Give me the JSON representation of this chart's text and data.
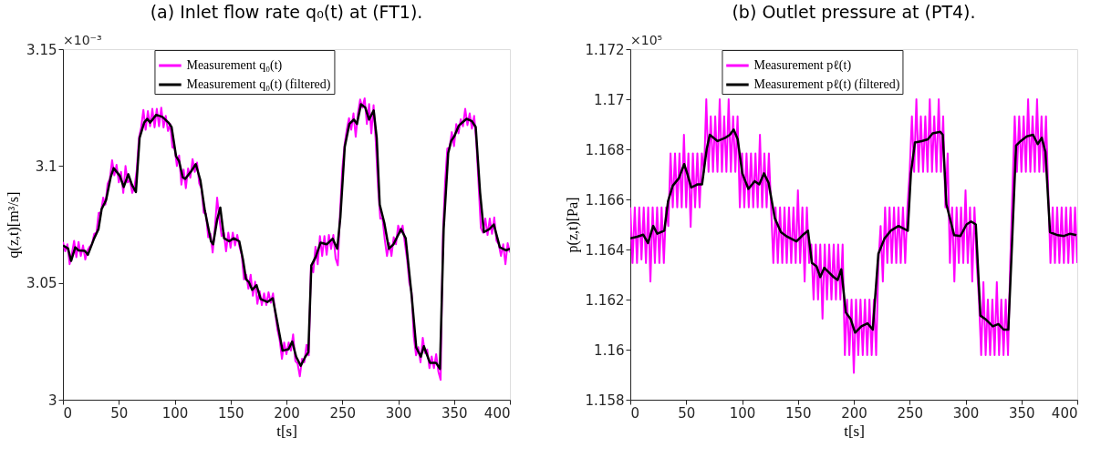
{
  "chart_data": [
    {
      "type": "line",
      "title": "(a) Inlet flow rate q₀(t) at (FT1).",
      "xlabel": "t[s]",
      "ylabel": "q(z,t)[m³/s]",
      "annotations": [
        "×10⁻³"
      ],
      "legend": "top",
      "xlim": [
        0,
        400
      ],
      "ylim": [
        3,
        3.15
      ],
      "xticks": [
        0,
        50,
        100,
        150,
        200,
        250,
        300,
        350,
        400
      ],
      "yticks": [
        3,
        3.05,
        3.1,
        3.15
      ],
      "series": [
        {
          "name": "Measurement q₀(t)",
          "color": "#ff00ff",
          "x": [
            0,
            2,
            4,
            6,
            8,
            10,
            12,
            14,
            16,
            18,
            20,
            22,
            24,
            26,
            28,
            30,
            32,
            34,
            36,
            38,
            40,
            42,
            44,
            46,
            48,
            50,
            52,
            54,
            56,
            58,
            60,
            62,
            64,
            66,
            68,
            70,
            72,
            74,
            76,
            78,
            80,
            82,
            84,
            86,
            88,
            90,
            92,
            94,
            96,
            98,
            100,
            102,
            104,
            106,
            108,
            110,
            112,
            114,
            116,
            118,
            120,
            122,
            124,
            126,
            128,
            130,
            132,
            134,
            136,
            138,
            140,
            142,
            144,
            146,
            148,
            150,
            152,
            154,
            156,
            158,
            160,
            162,
            164,
            166,
            168,
            170,
            172,
            174,
            176,
            178,
            180,
            182,
            184,
            186,
            188,
            190,
            192,
            194,
            196,
            198,
            200,
            202,
            204,
            206,
            208,
            210,
            212,
            214,
            216,
            218,
            220,
            222,
            224,
            226,
            228,
            230,
            232,
            234,
            236,
            238,
            240,
            242,
            244,
            246,
            248,
            250,
            252,
            254,
            256,
            258,
            260,
            262,
            264,
            266,
            268,
            270,
            272,
            274,
            276,
            278,
            280,
            282,
            284,
            286,
            288,
            290,
            292,
            294,
            296,
            298,
            300,
            302,
            304,
            306,
            308,
            310,
            312,
            314,
            316,
            318,
            320,
            322,
            324,
            326,
            328,
            330,
            332,
            334,
            336,
            338,
            340,
            342,
            344,
            346,
            348,
            350,
            352,
            354,
            356,
            358,
            360,
            362,
            364,
            366,
            368,
            370,
            372,
            374,
            376,
            378,
            380,
            382,
            384,
            386,
            388,
            390,
            392,
            394,
            396,
            398,
            400
          ],
          "values": [
            3.0675,
            3.0635,
            3.0665,
            3.058,
            3.0625,
            3.068,
            3.061,
            3.0675,
            3.0615,
            3.066,
            3.06,
            3.064,
            3.0655,
            3.0665,
            3.071,
            3.0715,
            3.08,
            3.08,
            3.0865,
            3.0835,
            3.0925,
            3.0945,
            3.1025,
            3.096,
            3.1005,
            3.093,
            3.0975,
            3.0885,
            3.1,
            3.093,
            3.094,
            3.0885,
            3.091,
            3.098,
            3.112,
            3.1165,
            3.124,
            3.1155,
            3.1235,
            3.117,
            3.1245,
            3.1165,
            3.1245,
            3.117,
            3.125,
            3.1165,
            3.1215,
            3.115,
            3.118,
            3.108,
            3.1075,
            3.1,
            3.1045,
            3.092,
            3.0985,
            3.0905,
            3.099,
            3.095,
            3.103,
            3.0975,
            3.1015,
            3.0925,
            3.0905,
            3.08,
            3.0795,
            3.0695,
            3.071,
            3.063,
            3.0735,
            3.0865,
            3.0775,
            3.07,
            3.0715,
            3.0635,
            3.0715,
            3.065,
            3.0715,
            3.066,
            3.0705,
            3.0655,
            3.062,
            3.0515,
            3.0535,
            3.0475,
            3.0535,
            3.0445,
            3.0505,
            3.041,
            3.0465,
            3.0405,
            3.0455,
            3.0405,
            3.046,
            3.0415,
            3.0455,
            3.037,
            3.03,
            3.0255,
            3.0175,
            3.0245,
            3.0195,
            3.0245,
            3.021,
            3.028,
            3.0165,
            3.0155,
            3.01,
            3.0175,
            3.016,
            3.0235,
            3.019,
            3.0575,
            3.0545,
            3.0655,
            3.058,
            3.07,
            3.0615,
            3.07,
            3.062,
            3.0705,
            3.0645,
            3.0705,
            3.0605,
            3.0575,
            3.08,
            3.0985,
            3.109,
            3.1155,
            3.1205,
            3.1155,
            3.1225,
            3.1125,
            3.1225,
            3.1285,
            3.125,
            3.129,
            3.118,
            3.1265,
            3.114,
            3.126,
            3.11,
            3.091,
            3.0775,
            3.0775,
            3.0685,
            3.0615,
            3.067,
            3.0615,
            3.0695,
            3.0665,
            3.0745,
            3.0715,
            3.0745,
            3.067,
            3.06,
            3.05,
            3.046,
            3.027,
            3.019,
            3.0225,
            3.016,
            3.0265,
            3.02,
            3.0215,
            3.0135,
            3.0185,
            3.0135,
            3.0195,
            3.012,
            3.0085,
            3.07,
            3.093,
            3.1075,
            3.108,
            3.1145,
            3.1085,
            3.118,
            3.114,
            3.12,
            3.117,
            3.1245,
            3.1175,
            3.1225,
            3.116,
            3.1215,
            3.11,
            3.092,
            3.0735,
            3.0715,
            3.0775,
            3.0705,
            3.0775,
            3.071,
            3.078,
            3.068,
            3.0665,
            3.0615,
            3.0665,
            3.058,
            3.067,
            3.063
          ]
        },
        {
          "name": "Measurement q₀(t) (filtered)",
          "color": "#000000",
          "x": [
            0,
            4.6,
            7.3,
            11,
            14,
            19.6,
            22.3,
            28,
            31.8,
            34.6,
            38.6,
            42.7,
            45.4,
            50.9,
            54.4,
            58.5,
            61.8,
            65.3,
            68.6,
            72.7,
            75.4,
            78.1,
            83.5,
            89,
            94.4,
            97.2,
            101.2,
            104,
            107.2,
            109.4,
            114.8,
            118.9,
            123,
            127,
            132.5,
            134.4,
            138,
            140.8,
            144.2,
            148.8,
            152.9,
            157.8,
            161.1,
            163.8,
            166.5,
            169.3,
            173.3,
            176.9,
            182.9,
            187.8,
            191,
            196.5,
            201.9,
            205.2,
            208.7,
            212.8,
            216.9,
            219.6,
            222.3,
            226.4,
            230.5,
            236,
            241.4,
            245.5,
            248.3,
            252.2,
            256.3,
            260.4,
            263.1,
            266.7,
            270.5,
            274,
            278.1,
            280.8,
            283.5,
            287.6,
            291.7,
            295.8,
            302.6,
            306.7,
            312.1,
            316.2,
            320.3,
            323,
            328.4,
            333.9,
            337.4,
            340.7,
            344.8,
            347.5,
            350.3,
            354.3,
            361.2,
            365.8,
            369.4,
            373.3,
            376.7,
            381.6,
            385.6,
            391,
            396.5,
            400
          ],
          "values": [
            3.066,
            3.0647,
            3.0594,
            3.0652,
            3.0639,
            3.0637,
            3.062,
            3.0691,
            3.073,
            3.0815,
            3.0854,
            3.0952,
            3.0991,
            3.0958,
            3.091,
            3.0965,
            3.0919,
            3.0889,
            3.1121,
            3.1186,
            3.1202,
            3.1186,
            3.1219,
            3.121,
            3.1186,
            3.1167,
            3.1043,
            3.102,
            3.0952,
            3.0945,
            3.0978,
            3.1008,
            3.0939,
            3.0809,
            3.0678,
            3.0665,
            3.077,
            3.0822,
            3.0691,
            3.0678,
            3.0691,
            3.0678,
            3.06,
            3.0516,
            3.0503,
            3.047,
            3.049,
            3.0431,
            3.0418,
            3.0434,
            3.0353,
            3.021,
            3.0216,
            3.0249,
            3.0184,
            3.0145,
            3.0184,
            3.0203,
            3.0574,
            3.0613,
            3.0672,
            3.0665,
            3.0689,
            3.0646,
            3.0783,
            3.1082,
            3.118,
            3.1199,
            3.118,
            3.1264,
            3.1251,
            3.1199,
            3.1238,
            3.1121,
            3.0835,
            3.0757,
            3.0646,
            3.0665,
            3.073,
            3.0691,
            3.0444,
            3.0223,
            3.0184,
            3.0229,
            3.0158,
            3.0158,
            3.0132,
            3.073,
            3.1056,
            3.1108,
            3.1128,
            3.1173,
            3.1202,
            3.1193,
            3.1167,
            3.0887,
            3.0717,
            3.073,
            3.075,
            3.0652,
            3.0639,
            3.0646
          ]
        }
      ]
    },
    {
      "type": "line",
      "title": "(b) Outlet pressure at (PT4).",
      "xlabel": "t[s]",
      "ylabel": "p(z,t)[Pa]",
      "annotations": [
        "×10⁵"
      ],
      "legend": "top",
      "xlim": [
        0,
        400
      ],
      "ylim": [
        1.158,
        1.172
      ],
      "xticks": [
        0,
        50,
        100,
        150,
        200,
        250,
        300,
        350,
        400
      ],
      "yticks": [
        1.158,
        1.16,
        1.162,
        1.164,
        1.166,
        1.168,
        1.17,
        1.172
      ],
      "series": [
        {
          "name": "Measurement pℓ(t)",
          "color": "#ff00ff",
          "x": [
            0,
            2,
            4,
            6,
            8,
            10,
            12,
            14,
            16,
            18,
            20,
            22,
            24,
            26,
            28,
            30,
            32,
            34,
            36,
            38,
            40,
            42,
            44,
            46,
            48,
            50,
            52,
            54,
            56,
            58,
            60,
            62,
            64,
            66,
            68,
            70,
            72,
            74,
            76,
            78,
            80,
            82,
            84,
            86,
            88,
            90,
            92,
            94,
            96,
            98,
            100,
            102,
            104,
            106,
            108,
            110,
            112,
            114,
            116,
            118,
            120,
            122,
            124,
            126,
            128,
            130,
            132,
            134,
            136,
            138,
            140,
            142,
            144,
            146,
            148,
            150,
            152,
            154,
            156,
            158,
            160,
            162,
            164,
            166,
            168,
            170,
            172,
            174,
            176,
            178,
            180,
            182,
            184,
            186,
            188,
            190,
            192,
            194,
            196,
            198,
            200,
            202,
            204,
            206,
            208,
            210,
            212,
            214,
            216,
            218,
            220,
            222,
            224,
            226,
            228,
            230,
            232,
            234,
            236,
            238,
            240,
            242,
            244,
            246,
            248,
            250,
            252,
            254,
            256,
            258,
            260,
            262,
            264,
            266,
            268,
            270,
            272,
            274,
            276,
            278,
            280,
            282,
            284,
            286,
            288,
            290,
            292,
            294,
            296,
            298,
            300,
            302,
            304,
            306,
            308,
            310,
            312,
            314,
            316,
            318,
            320,
            322,
            324,
            326,
            328,
            330,
            332,
            334,
            336,
            338,
            340,
            342,
            344,
            346,
            348,
            350,
            352,
            354,
            356,
            358,
            360,
            362,
            364,
            366,
            368,
            370,
            372,
            374,
            376,
            378,
            380,
            382,
            384,
            386,
            388,
            390,
            392,
            394,
            396,
            398,
            400
          ],
          "values": [
            1.16568,
            1.16346,
            1.16568,
            1.16346,
            1.16568,
            1.1636,
            1.16568,
            1.16346,
            1.16568,
            1.16272,
            1.16568,
            1.16346,
            1.16568,
            1.16346,
            1.16568,
            1.16346,
            1.16568,
            1.16494,
            1.16784,
            1.16568,
            1.16784,
            1.16568,
            1.16784,
            1.16568,
            1.16858,
            1.16568,
            1.16784,
            1.1649,
            1.16784,
            1.16568,
            1.16784,
            1.16568,
            1.16784,
            1.1671,
            1.17,
            1.1671,
            1.16932,
            1.1671,
            1.16932,
            1.1671,
            1.17,
            1.1671,
            1.16932,
            1.1671,
            1.17,
            1.1671,
            1.16932,
            1.1671,
            1.16932,
            1.16568,
            1.16784,
            1.16568,
            1.16784,
            1.16568,
            1.16784,
            1.16568,
            1.16784,
            1.16568,
            1.16858,
            1.16568,
            1.16784,
            1.16568,
            1.16784,
            1.16568,
            1.16346,
            1.16568,
            1.16346,
            1.16568,
            1.16346,
            1.16568,
            1.16346,
            1.16568,
            1.16346,
            1.16568,
            1.16346,
            1.16636,
            1.16346,
            1.16568,
            1.16272,
            1.16568,
            1.16346,
            1.1642,
            1.162,
            1.1642,
            1.162,
            1.1642,
            1.16124,
            1.1642,
            1.162,
            1.1642,
            1.162,
            1.1642,
            1.162,
            1.1642,
            1.162,
            1.1642,
            1.15978,
            1.162,
            1.15978,
            1.162,
            1.15907,
            1.162,
            1.15978,
            1.162,
            1.15978,
            1.162,
            1.15978,
            1.162,
            1.15978,
            1.162,
            1.15978,
            1.16346,
            1.16494,
            1.16272,
            1.16568,
            1.16346,
            1.16568,
            1.16346,
            1.16568,
            1.16346,
            1.16568,
            1.16346,
            1.16568,
            1.16346,
            1.16568,
            1.1671,
            1.16932,
            1.1671,
            1.17,
            1.1671,
            1.16932,
            1.1671,
            1.16932,
            1.1671,
            1.17,
            1.1671,
            1.16932,
            1.1671,
            1.17,
            1.1671,
            1.16932,
            1.16568,
            1.16784,
            1.16346,
            1.16568,
            1.16272,
            1.16568,
            1.16346,
            1.16568,
            1.16346,
            1.16636,
            1.16346,
            1.16568,
            1.16272,
            1.16568,
            1.16346,
            1.162,
            1.15978,
            1.1627,
            1.15978,
            1.162,
            1.15978,
            1.162,
            1.15978,
            1.1627,
            1.15978,
            1.162,
            1.15978,
            1.162,
            1.15978,
            1.16346,
            1.16636,
            1.16932,
            1.1671,
            1.16932,
            1.1671,
            1.16932,
            1.1671,
            1.17,
            1.1671,
            1.16932,
            1.1671,
            1.17,
            1.1671,
            1.16932,
            1.1671,
            1.16932,
            1.16636,
            1.16346,
            1.16568,
            1.16346,
            1.16568,
            1.16346,
            1.16568,
            1.16346,
            1.16568,
            1.16346,
            1.16568,
            1.16346,
            1.16568,
            1.16346
          ]
        },
        {
          "name": "Measurement pℓ(t) (filtered)",
          "color": "#000000",
          "x": [
            0,
            6.1,
            11.6,
            15.8,
            20.5,
            24.1,
            30.4,
            33.8,
            37.9,
            43.5,
            48.2,
            50.9,
            54.5,
            60.1,
            64.2,
            68.4,
            71.1,
            78.1,
            84.9,
            89.1,
            92.5,
            96.1,
            100.2,
            105.7,
            111.3,
            115.4,
            119.6,
            123.7,
            129.3,
            134.8,
            140.4,
            148.7,
            154.2,
            159,
            162.5,
            166.6,
            170,
            173.6,
            177.7,
            181.9,
            185.5,
            188.8,
            192.9,
            197.1,
            201.2,
            206.8,
            212.3,
            217,
            222,
            227.5,
            233.1,
            240,
            245.5,
            248.3,
            251.1,
            254.7,
            260.8,
            266.3,
            270.5,
            277.4,
            279.6,
            282.9,
            289.8,
            295.4,
            300.9,
            305,
            309.2,
            313.3,
            317.5,
            324.4,
            329.4,
            334.1,
            338.3,
            341.1,
            345.2,
            349.3,
            354.9,
            360.4,
            364.6,
            368.2,
            371.5,
            375.6,
            382.6,
            388.1,
            393.6,
            399.2
          ],
          "values": [
            1.16444,
            1.16451,
            1.16459,
            1.16426,
            1.16494,
            1.16463,
            1.16475,
            1.16593,
            1.16654,
            1.16685,
            1.16741,
            1.16704,
            1.16648,
            1.1666,
            1.1666,
            1.16802,
            1.16858,
            1.16833,
            1.16846,
            1.16858,
            1.16879,
            1.1684,
            1.16704,
            1.16642,
            1.16673,
            1.1666,
            1.16704,
            1.16667,
            1.16525,
            1.16469,
            1.16451,
            1.16432,
            1.16457,
            1.16475,
            1.16346,
            1.16333,
            1.1629,
            1.16327,
            1.16309,
            1.1629,
            1.16278,
            1.16321,
            1.16148,
            1.16123,
            1.16068,
            1.16093,
            1.16105,
            1.1608,
            1.16383,
            1.16444,
            1.16475,
            1.16494,
            1.16481,
            1.16475,
            1.16704,
            1.16827,
            1.16833,
            1.1684,
            1.16864,
            1.1687,
            1.16858,
            1.1658,
            1.16457,
            1.16454,
            1.165,
            1.16512,
            1.165,
            1.16136,
            1.16123,
            1.16093,
            1.16102,
            1.1608,
            1.1608,
            1.1637,
            1.16815,
            1.16833,
            1.16852,
            1.16858,
            1.16821,
            1.16846,
            1.1679,
            1.16469,
            1.16457,
            1.16454,
            1.16463,
            1.16457
          ]
        }
      ]
    }
  ]
}
